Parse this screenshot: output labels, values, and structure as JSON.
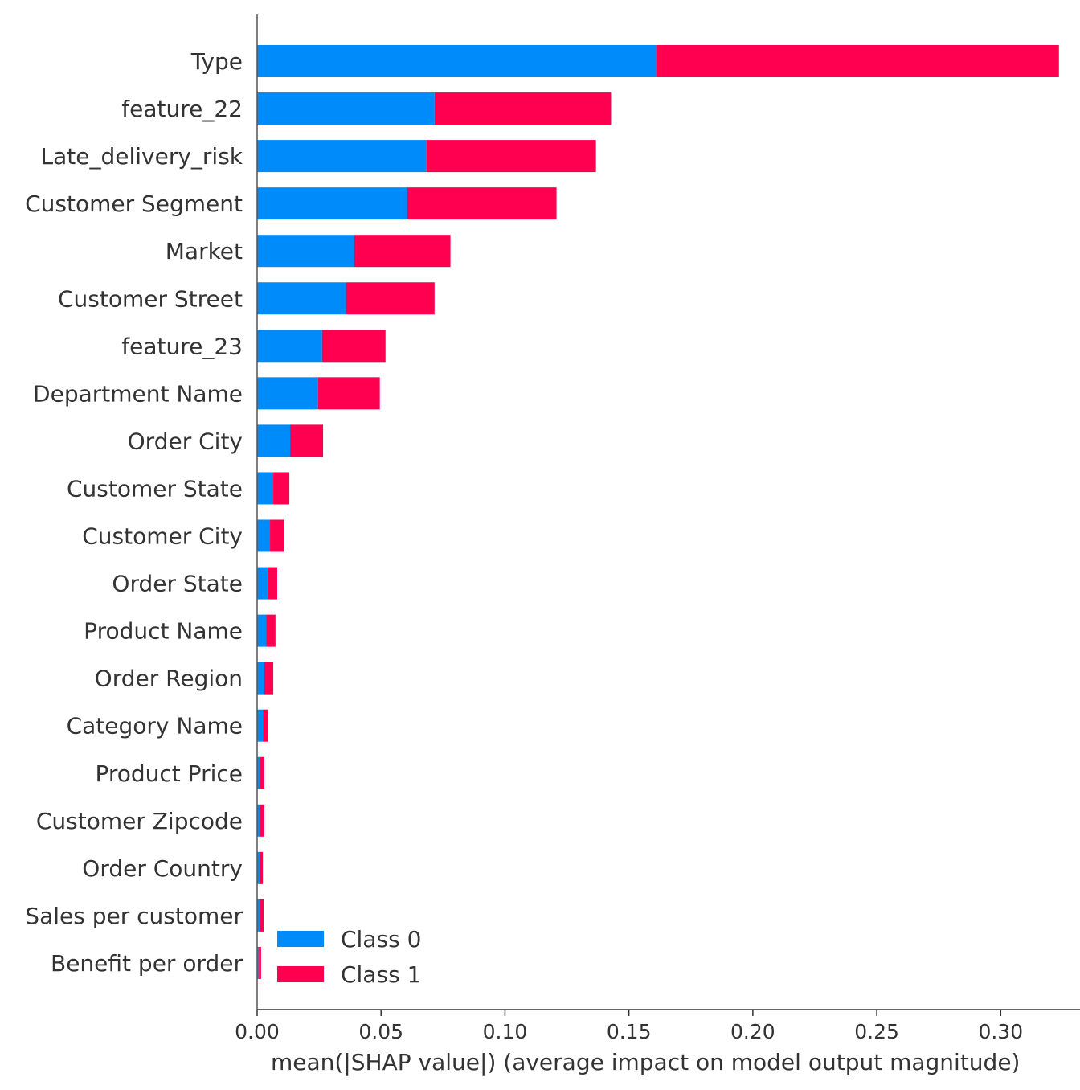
{
  "chart_data": {
    "type": "bar",
    "orientation": "horizontal",
    "stacked": true,
    "title": "",
    "xlabel": "mean(|SHAP value|) (average impact on model output magnitude)",
    "ylabel": "",
    "xlim": [
      0,
      0.332
    ],
    "xticks": [
      0.0,
      0.05,
      0.1,
      0.15,
      0.2,
      0.25,
      0.3
    ],
    "xtick_labels": [
      "0.00",
      "0.05",
      "0.10",
      "0.15",
      "0.20",
      "0.25",
      "0.30"
    ],
    "grid": false,
    "legend_placement": "lower-left",
    "categories": [
      "Type",
      "feature_22",
      "Late_delivery_risk",
      "Customer Segment",
      "Market",
      "Customer Street",
      "feature_23",
      "Department Name",
      "Order City",
      "Customer State",
      "Customer City",
      "Order State",
      "Product Name",
      "Order Region",
      "Category Name",
      "Product Price",
      "Customer Zipcode",
      "Order Country",
      "Sales per customer",
      "Benefit per order"
    ],
    "series": [
      {
        "name": "Class 0",
        "color": "#008bfb",
        "values": [
          0.161,
          0.0716,
          0.0683,
          0.0606,
          0.0392,
          0.0359,
          0.0262,
          0.0246,
          0.0133,
          0.0065,
          0.0052,
          0.0042,
          0.0036,
          0.0029,
          0.0023,
          0.0013,
          0.0013,
          0.001,
          0.001,
          0.0007
        ]
      },
      {
        "name": "Class 1",
        "color": "#ff0051",
        "values": [
          0.1625,
          0.0712,
          0.0684,
          0.0602,
          0.0388,
          0.0357,
          0.0256,
          0.0249,
          0.0133,
          0.0065,
          0.0055,
          0.0039,
          0.0038,
          0.0036,
          0.0022,
          0.0016,
          0.0016,
          0.0013,
          0.0016,
          0.0009
        ]
      }
    ]
  }
}
